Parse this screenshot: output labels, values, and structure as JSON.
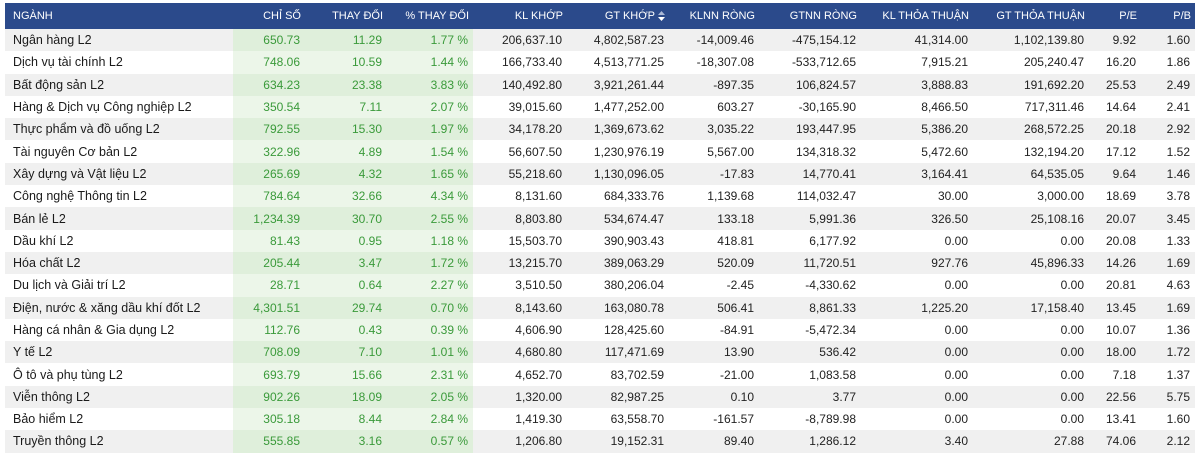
{
  "table": {
    "headers": [
      "NGÀNH",
      "CHỈ SỐ",
      "THAY ĐỔI",
      "% THAY ĐỔI",
      "KL KHỚP",
      "GT KHỚP",
      "KLNN RÒNG",
      "GTNN RÒNG",
      "KL THỎA THUẬN",
      "GT THỎA THUẬN",
      "P/E",
      "P/B"
    ],
    "sorted_column": "GT KHỚP",
    "sort_icon": "sort-desc-icon",
    "colors": {
      "header_bg": "#2b4a8b",
      "up": "#3a9a3a"
    },
    "rows": [
      [
        "Ngân hàng L2",
        "650.73",
        "11.29",
        "1.77 %",
        "206,637.10",
        "4,802,587.23",
        "-14,009.46",
        "-475,154.12",
        "41,314.00",
        "1,102,139.80",
        "9.92",
        "1.60"
      ],
      [
        "Dịch vụ tài chính L2",
        "748.06",
        "10.59",
        "1.44 %",
        "166,733.40",
        "4,513,771.25",
        "-18,307.08",
        "-533,712.65",
        "7,915.21",
        "205,240.47",
        "16.20",
        "1.86"
      ],
      [
        "Bất động sản L2",
        "634.23",
        "23.38",
        "3.83 %",
        "140,492.80",
        "3,921,261.44",
        "-897.35",
        "106,824.57",
        "3,888.83",
        "191,692.20",
        "25.53",
        "2.49"
      ],
      [
        "Hàng & Dịch vụ Công nghiệp L2",
        "350.54",
        "7.11",
        "2.07 %",
        "39,015.60",
        "1,477,252.00",
        "603.27",
        "-30,165.90",
        "8,466.50",
        "717,311.46",
        "14.64",
        "2.41"
      ],
      [
        "Thực phẩm và đồ uống L2",
        "792.55",
        "15.30",
        "1.97 %",
        "34,178.20",
        "1,369,673.62",
        "3,035.22",
        "193,447.95",
        "5,386.20",
        "268,572.25",
        "20.18",
        "2.92"
      ],
      [
        "Tài nguyên Cơ bản L2",
        "322.96",
        "4.89",
        "1.54 %",
        "56,607.50",
        "1,230,976.19",
        "5,567.00",
        "134,318.32",
        "5,472.60",
        "132,194.20",
        "17.12",
        "1.52"
      ],
      [
        "Xây dựng và Vật liệu L2",
        "265.69",
        "4.32",
        "1.65 %",
        "55,218.60",
        "1,130,096.05",
        "-17.83",
        "14,770.41",
        "3,164.41",
        "64,535.05",
        "9.64",
        "1.46"
      ],
      [
        "Công nghệ Thông tin L2",
        "784.64",
        "32.66",
        "4.34 %",
        "8,131.60",
        "684,333.76",
        "1,139.68",
        "114,032.47",
        "30.00",
        "3,000.00",
        "18.69",
        "3.78"
      ],
      [
        "Bán lẻ L2",
        "1,234.39",
        "30.70",
        "2.55 %",
        "8,803.80",
        "534,674.47",
        "133.18",
        "5,991.36",
        "326.50",
        "25,108.16",
        "20.07",
        "3.45"
      ],
      [
        "Dầu khí L2",
        "81.43",
        "0.95",
        "1.18 %",
        "15,503.70",
        "390,903.43",
        "418.81",
        "6,177.92",
        "0.00",
        "0.00",
        "20.08",
        "1.33"
      ],
      [
        "Hóa chất L2",
        "205.44",
        "3.47",
        "1.72 %",
        "13,215.70",
        "389,063.29",
        "520.09",
        "11,720.51",
        "927.76",
        "45,896.33",
        "14.26",
        "1.69"
      ],
      [
        "Du lịch và Giải trí L2",
        "28.71",
        "0.64",
        "2.27 %",
        "3,510.50",
        "380,206.04",
        "-2.45",
        "-4,330.62",
        "0.00",
        "0.00",
        "20.81",
        "4.63"
      ],
      [
        "Điện, nước & xăng dầu khí đốt L2",
        "4,301.51",
        "29.74",
        "0.70 %",
        "8,143.60",
        "163,080.78",
        "506.41",
        "8,861.33",
        "1,225.20",
        "17,158.40",
        "13.45",
        "1.69"
      ],
      [
        "Hàng cá nhân & Gia dụng L2",
        "112.76",
        "0.43",
        "0.39 %",
        "4,606.90",
        "128,425.60",
        "-84.91",
        "-5,472.34",
        "0.00",
        "0.00",
        "10.07",
        "1.36"
      ],
      [
        "Y tế L2",
        "708.09",
        "7.10",
        "1.01 %",
        "4,680.80",
        "117,471.69",
        "13.90",
        "536.42",
        "0.00",
        "0.00",
        "18.00",
        "1.72"
      ],
      [
        "Ô tô và phụ tùng L2",
        "693.79",
        "15.66",
        "2.31 %",
        "4,652.70",
        "83,702.59",
        "-21.00",
        "1,083.58",
        "0.00",
        "0.00",
        "7.18",
        "1.37"
      ],
      [
        "Viễn thông L2",
        "902.26",
        "18.09",
        "2.05 %",
        "1,320.00",
        "82,987.25",
        "0.10",
        "3.77",
        "0.00",
        "0.00",
        "22.56",
        "5.75"
      ],
      [
        "Bảo hiểm L2",
        "305.18",
        "8.44",
        "2.84 %",
        "1,419.30",
        "63,558.70",
        "-161.57",
        "-8,789.98",
        "0.00",
        "0.00",
        "13.41",
        "1.60"
      ],
      [
        "Truyền thông L2",
        "555.85",
        "3.16",
        "0.57 %",
        "1,206.80",
        "19,152.31",
        "89.40",
        "1,286.12",
        "3.40",
        "27.88",
        "74.06",
        "2.12"
      ]
    ]
  }
}
